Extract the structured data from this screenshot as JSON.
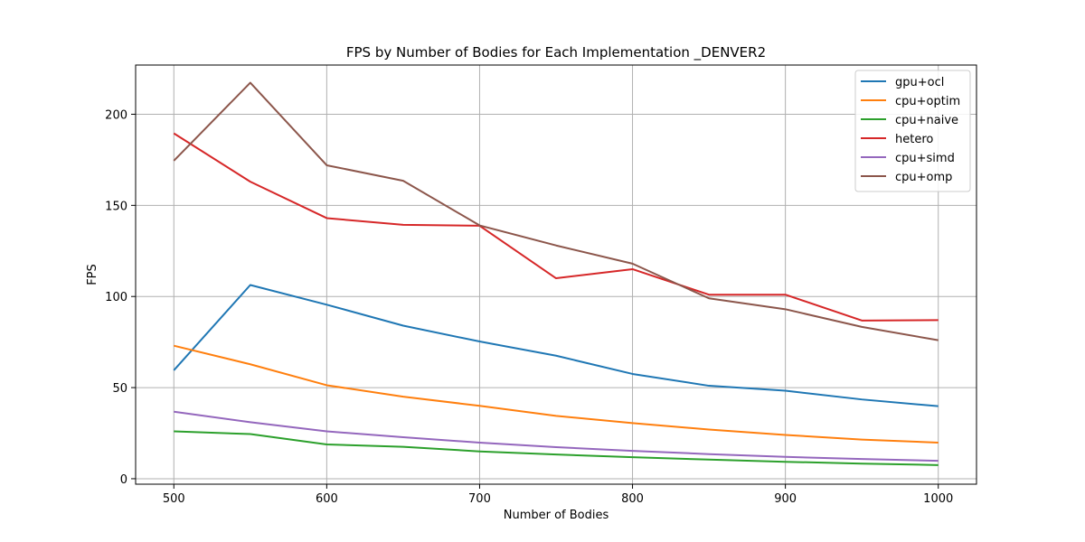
{
  "chart_data": {
    "type": "line",
    "title": "FPS by Number of Bodies for Each Implementation _DENVER2",
    "xlabel": "Number of Bodies",
    "ylabel": "FPS",
    "x": [
      500,
      550,
      600,
      650,
      700,
      750,
      800,
      850,
      900,
      950,
      1000
    ],
    "xlim": [
      475,
      1025
    ],
    "ylim": [
      -3,
      227
    ],
    "xticks": [
      500,
      600,
      700,
      800,
      900,
      1000
    ],
    "yticks": [
      0,
      50,
      100,
      150,
      200
    ],
    "grid": true,
    "legend_position": "upper right",
    "series": [
      {
        "name": "gpu+ocl",
        "color": "#1f77b4",
        "values": [
          59.5,
          106.3,
          95.5,
          84,
          75.3,
          67.5,
          57.5,
          51,
          48.3,
          43.5,
          39.8
        ]
      },
      {
        "name": "cpu+optim",
        "color": "#ff7f0e",
        "values": [
          73,
          62.8,
          51.3,
          45,
          40,
          34.5,
          30.5,
          27,
          24,
          21.5,
          19.8
        ]
      },
      {
        "name": "cpu+naive",
        "color": "#2ca02c",
        "values": [
          26,
          24.5,
          18.8,
          17.5,
          15,
          13.3,
          11.8,
          10.5,
          9.3,
          8.3,
          7.5
        ]
      },
      {
        "name": "hetero",
        "color": "#d62728",
        "values": [
          189.5,
          163,
          143,
          139.3,
          138.8,
          110,
          115,
          101,
          101,
          86.8,
          87
        ]
      },
      {
        "name": "cpu+simd",
        "color": "#9467bd",
        "values": [
          36.8,
          31,
          26,
          22.8,
          19.8,
          17.3,
          15.3,
          13.5,
          12,
          10.8,
          9.8
        ]
      },
      {
        "name": "cpu+omp",
        "color": "#8c564b",
        "values": [
          174.5,
          217.3,
          172,
          163.5,
          139,
          128,
          118,
          99,
          93,
          83.3,
          76
        ]
      }
    ]
  }
}
